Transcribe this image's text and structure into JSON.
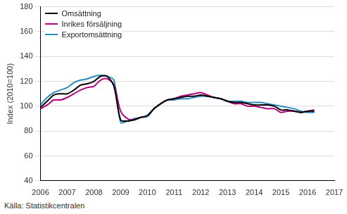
{
  "chart_data": {
    "type": "line",
    "y_label": "Index (2010=100)",
    "source": "Källa: Statistikcentralen",
    "x": [
      2006,
      2006.25,
      2006.5,
      2006.75,
      2007,
      2007.25,
      2007.5,
      2007.75,
      2008,
      2008.25,
      2008.5,
      2008.75,
      2009,
      2009.25,
      2009.5,
      2009.75,
      2010,
      2010.25,
      2010.5,
      2010.75,
      2011,
      2011.25,
      2011.5,
      2011.75,
      2012,
      2012.25,
      2012.5,
      2012.75,
      2013,
      2013.25,
      2013.5,
      2013.75,
      2014,
      2014.25,
      2014.5,
      2014.75,
      2015,
      2015.25,
      2015.5,
      2015.75,
      2016,
      2016.25
    ],
    "series": [
      {
        "name": "Omsättning",
        "color": "#000000",
        "values": [
          99,
          104,
          109,
          110,
          110,
          113,
          117,
          118,
          120,
          124,
          124,
          116,
          89,
          88,
          89,
          91,
          92,
          98,
          102,
          105,
          106,
          107,
          108,
          108,
          109,
          108,
          107,
          106,
          104,
          103,
          103,
          102,
          101,
          101,
          101,
          100,
          97,
          97,
          96,
          95,
          96,
          96
        ]
      },
      {
        "name": "Inrikes försäljning",
        "color": "#b5007f",
        "values": [
          98,
          101,
          105,
          105,
          107,
          110,
          113,
          115,
          116,
          121,
          122,
          117,
          96,
          90,
          89,
          91,
          92,
          98,
          102,
          105,
          106,
          108,
          109,
          110,
          111,
          109,
          107,
          106,
          104,
          102,
          102,
          100,
          100,
          99,
          98,
          98,
          95,
          96,
          96,
          95,
          96,
          97
        ]
      },
      {
        "name": "Exportomsättning",
        "color": "#2b8cbe",
        "values": [
          101,
          107,
          111,
          113,
          115,
          119,
          121,
          122,
          124,
          125,
          124,
          121,
          87,
          88,
          90,
          91,
          93,
          98,
          102,
          105,
          105,
          106,
          106,
          107,
          108,
          108,
          107,
          106,
          104,
          104,
          104,
          103,
          103,
          103,
          102,
          101,
          100,
          99,
          98,
          96,
          95,
          95
        ]
      }
    ],
    "xlim": [
      2006,
      2017
    ],
    "xticks": [
      2006,
      2007,
      2008,
      2009,
      2010,
      2011,
      2012,
      2013,
      2014,
      2015,
      2016,
      2017
    ],
    "ylim": [
      40,
      180
    ],
    "yticks": [
      40,
      60,
      80,
      100,
      120,
      140,
      160,
      180
    ],
    "grid": true,
    "legend": "top-left"
  }
}
